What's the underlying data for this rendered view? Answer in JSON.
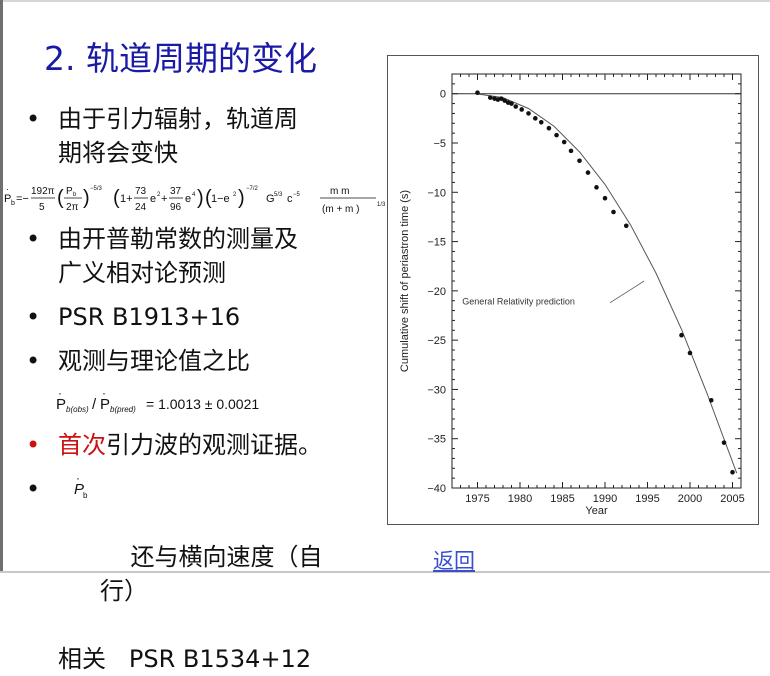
{
  "slide": {
    "title": "2. 轨道周期的变化",
    "bullet_symbol": "•",
    "bullets": {
      "b1_line1": "由于引力辐射，轨道周",
      "b1_line2": "期将会变快",
      "b2_line1": "由开普勒常数的测量及",
      "b2_line2": "广义相对论预测",
      "b3": "PSR B1913+16",
      "b4": "观测与理论值之比",
      "b5_red": "首次",
      "b5_rest": "引力波的观测证据。",
      "b6_line1": "还与横向速度（自行）",
      "b6_line2": "相关   PSR B1534+12"
    },
    "formula_main": "Ṗb = −(192π/5)(Pb/2π)^(−5/3)(1+(73/24)e²+(37/96)e⁴)(1−e²)^(−7/2) G^(5/3) c^(−5) m_p m_c/(m_p+m_c)^(1/3)",
    "formula_ratio": "Ṗb(obs)/Ṗb(pred) = 1.0013 ± 0.0021",
    "back_link": "返回"
  },
  "chart_data": {
    "type": "scatter",
    "xlabel": "Year",
    "ylabel": "Cumulative shift of periastron time (s)",
    "xlim": [
      1972,
      2006
    ],
    "ylim": [
      -40,
      2
    ],
    "x_ticks": [
      1975,
      1980,
      1985,
      1990,
      1995,
      2000,
      2005
    ],
    "y_ticks": [
      0,
      -5,
      -10,
      -15,
      -20,
      -25,
      -30,
      -35,
      -40
    ],
    "curve_label": "General Relativity prediction",
    "curve": {
      "x": [
        1974.8,
        1978,
        1981,
        1984,
        1987,
        1990,
        1993,
        1996,
        1999,
        2002,
        2005.5
      ],
      "y": [
        0,
        -0.4,
        -1.5,
        -3.3,
        -5.9,
        -9.2,
        -13.3,
        -18.2,
        -23.9,
        -30.4,
        -38.5
      ]
    },
    "points": {
      "x": [
        1975.0,
        1976.5,
        1977.0,
        1977.4,
        1977.8,
        1978.2,
        1978.6,
        1979.0,
        1979.5,
        1980.2,
        1981.0,
        1981.8,
        1982.5,
        1983.4,
        1984.3,
        1985.2,
        1986.0,
        1987.0,
        1988.0,
        1989.0,
        1990.0,
        1991.0,
        1992.5,
        1999.0,
        2000.0,
        2002.5,
        2004.0,
        2005.0
      ],
      "y": [
        0.1,
        -0.4,
        -0.5,
        -0.6,
        -0.5,
        -0.7,
        -0.9,
        -1.0,
        -1.3,
        -1.6,
        -2.0,
        -2.5,
        -2.9,
        -3.5,
        -4.2,
        -4.9,
        -5.8,
        -6.8,
        -8.0,
        -9.5,
        -10.6,
        -12.0,
        -13.4,
        -24.5,
        -26.3,
        -31.1,
        -35.4,
        -38.4
      ]
    }
  }
}
